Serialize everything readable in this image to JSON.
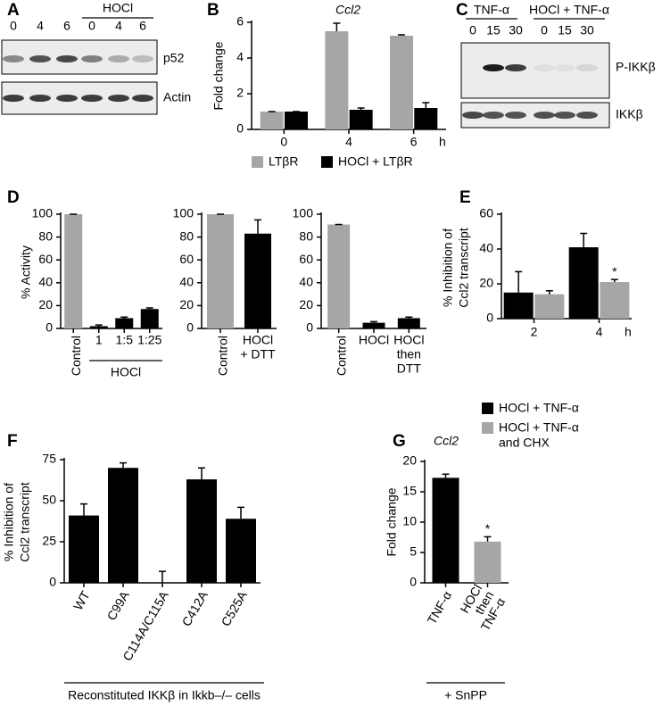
{
  "blots": [
    {
      "panel": "A",
      "headers": [
        "HOCl"
      ],
      "lanes": [
        "0",
        "4",
        "6",
        "0",
        "4",
        "6"
      ],
      "bands": [
        "p52",
        "Actin"
      ]
    },
    {
      "panel": "C",
      "headers": [
        "TNF-α",
        "HOCl + TNF-α"
      ],
      "lanes": [
        "0",
        "15",
        "30",
        "0",
        "15",
        "30"
      ],
      "bands": [
        "P-IKKβ",
        "IKKβ"
      ]
    }
  ],
  "chart_data": [
    {
      "type": "bar",
      "panel": "B",
      "title": "Ccl2",
      "ylabel": "Fold change",
      "categories": [
        "0",
        "4",
        "6"
      ],
      "x_unit": "h",
      "series": [
        {
          "name": "LTβR",
          "color": "#a6a6a6",
          "values": [
            1,
            5.5,
            5.25
          ],
          "errors": [
            0,
            0.45,
            0.05
          ]
        },
        {
          "name": "HOCl + LTβR",
          "color": "#000000",
          "values": [
            1,
            1.1,
            1.2
          ],
          "errors": [
            0,
            0.1,
            0.3
          ]
        }
      ],
      "ylim": [
        0,
        6
      ],
      "yticks": [
        0,
        2,
        4,
        6
      ]
    },
    {
      "type": "bar",
      "panel": "D",
      "ylabel": "% Activity",
      "categories": [
        "Control",
        "1",
        "1:5",
        "1:25"
      ],
      "xlabel": "HOCl",
      "values": [
        100,
        2,
        9,
        17
      ],
      "errors": [
        0,
        1,
        1,
        1
      ],
      "colors": [
        "#a6a6a6",
        "#000000",
        "#000000",
        "#000000"
      ],
      "ylim": [
        0,
        100
      ],
      "yticks": [
        0,
        20,
        40,
        60,
        80,
        100
      ]
    },
    {
      "type": "bar",
      "categories": [
        "Control",
        [
          "HOCl",
          "+ DTT"
        ]
      ],
      "values": [
        100,
        83
      ],
      "errors": [
        0,
        12
      ],
      "colors": [
        "#a6a6a6",
        "#000000"
      ],
      "ylim": [
        0,
        100
      ],
      "yticks": [
        0,
        20,
        40,
        60,
        80,
        100
      ]
    },
    {
      "type": "bar",
      "categories": [
        "Control",
        "HOCl",
        [
          "HOCl",
          "then",
          "DTT"
        ]
      ],
      "values": [
        91,
        5,
        9
      ],
      "errors": [
        0,
        1,
        1
      ],
      "colors": [
        "#a6a6a6",
        "#000000",
        "#000000"
      ],
      "ylim": [
        0,
        100
      ],
      "yticks": [
        0,
        20,
        40,
        60,
        80,
        100
      ]
    },
    {
      "type": "bar",
      "panel": "E",
      "ylabel": [
        "% Inhibition of",
        "Ccl2 transcript"
      ],
      "categories": [
        "2",
        "4"
      ],
      "x_unit": "h",
      "series": [
        {
          "name": [
            "HOCl + TNF-α"
          ],
          "color": "#000000",
          "values": [
            15,
            41
          ],
          "errors": [
            12,
            8
          ],
          "significance": [
            null,
            null
          ]
        },
        {
          "name": [
            "HOCl + TNF-α",
            "and CHX"
          ],
          "color": "#a6a6a6",
          "values": [
            14,
            21
          ],
          "errors": [
            2,
            1.5
          ],
          "significance": [
            null,
            "*"
          ]
        }
      ],
      "ylim": [
        0,
        60
      ],
      "yticks": [
        0,
        20,
        40,
        60
      ]
    },
    {
      "type": "bar",
      "panel": "F",
      "ylabel": [
        "% Inhibition of",
        "Ccl2 transcript"
      ],
      "categories": [
        "WT",
        "C99A",
        "C114A/C115A",
        "C412A",
        "C525A"
      ],
      "xlabel": "Reconstituted IKKβ in Ikkb–/– cells",
      "values": [
        41,
        70,
        0,
        63,
        39
      ],
      "errors": [
        7,
        3,
        7,
        7,
        7
      ],
      "colors": [
        "#000000",
        "#000000",
        "#000000",
        "#000000",
        "#000000"
      ],
      "ylim": [
        0,
        75
      ],
      "yticks": [
        0,
        25,
        50,
        75
      ]
    },
    {
      "type": "bar",
      "panel": "G",
      "title": "Ccl2",
      "ylabel": "Fold change",
      "categories": [
        "TNF-α",
        [
          "HOCl",
          "then",
          "TNF-α"
        ]
      ],
      "xlabel": "+ SnPP",
      "values": [
        17.3,
        6.8
      ],
      "errors": [
        0.6,
        0.8
      ],
      "colors": [
        "#000000",
        "#a6a6a6"
      ],
      "significance": [
        null,
        "*"
      ],
      "ylim": [
        0,
        20
      ],
      "yticks": [
        0,
        5,
        10,
        15,
        20
      ]
    }
  ]
}
